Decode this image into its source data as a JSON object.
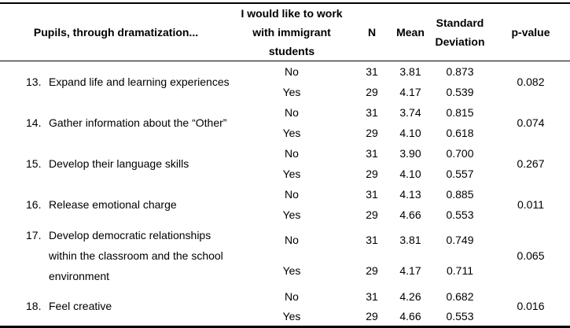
{
  "table": {
    "headers": {
      "item": "Pupils, through dramatization...",
      "group": "I would like to work with immigrant students",
      "n": "N",
      "mean": "Mean",
      "sd": "Standard Deviation",
      "p": "p-value"
    },
    "rows": [
      {
        "number": "13.",
        "label_lines": [
          "Expand life and learning experiences"
        ],
        "no": {
          "label": "No",
          "n": "31",
          "mean": "3.81",
          "sd": "0.873"
        },
        "yes": {
          "label": "Yes",
          "n": "29",
          "mean": "4.17",
          "sd": "0.539"
        },
        "p": "0.082"
      },
      {
        "number": "14.",
        "label_lines": [
          "Gather information about the “Other”"
        ],
        "no": {
          "label": "No",
          "n": "31",
          "mean": "3.74",
          "sd": "0.815"
        },
        "yes": {
          "label": "Yes",
          "n": "29",
          "mean": "4.10",
          "sd": "0.618"
        },
        "p": "0.074"
      },
      {
        "number": "15.",
        "label_lines": [
          "Develop their language skills"
        ],
        "no": {
          "label": "No",
          "n": "31",
          "mean": "3.90",
          "sd": "0.700"
        },
        "yes": {
          "label": "Yes",
          "n": "29",
          "mean": "4.10",
          "sd": "0.557"
        },
        "p": "0.267"
      },
      {
        "number": "16.",
        "label_lines": [
          "Release emotional charge"
        ],
        "no": {
          "label": "No",
          "n": "31",
          "mean": "4.13",
          "sd": "0.885"
        },
        "yes": {
          "label": "Yes",
          "n": "29",
          "mean": "4.66",
          "sd": "0.553"
        },
        "p": "0.011"
      },
      {
        "number": "17.",
        "label_lines": [
          "Develop democratic relationships",
          "within the classroom and the school",
          "environment"
        ],
        "no": {
          "label": "No",
          "n": "31",
          "mean": "3.81",
          "sd": "0.749"
        },
        "yes": {
          "label": "Yes",
          "n": "29",
          "mean": "4.17",
          "sd": "0.711"
        },
        "p": "0.065"
      },
      {
        "number": "18.",
        "label_lines": [
          "Feel creative"
        ],
        "no": {
          "label": "No",
          "n": "31",
          "mean": "4.26",
          "sd": "0.682"
        },
        "yes": {
          "label": "Yes",
          "n": "29",
          "mean": "4.66",
          "sd": "0.553"
        },
        "p": "0.016"
      }
    ]
  },
  "colors": {
    "border": "#000000",
    "text": "#000000",
    "background": "#ffffff"
  }
}
